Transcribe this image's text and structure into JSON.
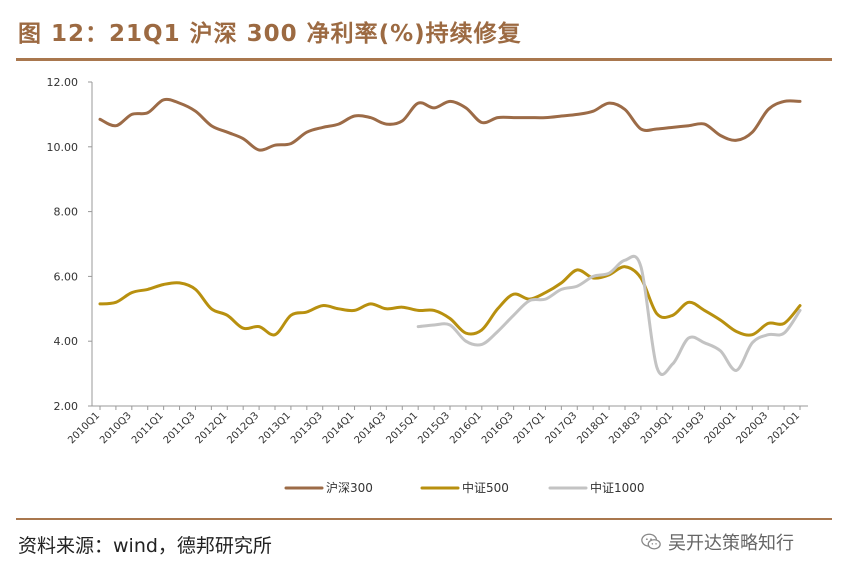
{
  "title": "图 12：21Q1 沪深 300 净利率(%)持续修复",
  "source": "资料来源：wind，德邦研究所",
  "watermark": "吴开达策略知行",
  "watermark_icon": "wechat-icon",
  "colors": {
    "accent": "#a9774e",
    "hs300": "#9c6b47",
    "zz500": "#b8900f",
    "zz1000": "#c3c3c3"
  },
  "chart_data": {
    "type": "line",
    "title": "21Q1 沪深 300 净利率(%)持续修复",
    "ylim": [
      2,
      12
    ],
    "yticks": [
      "12.00",
      "10.00",
      "8.00",
      "6.00",
      "4.00",
      "2.00"
    ],
    "xtick_labels": [
      "2010Q1",
      "2010Q3",
      "2011Q1",
      "2011Q3",
      "2012Q1",
      "2012Q3",
      "2013Q1",
      "2013Q3",
      "2014Q1",
      "2014Q3",
      "2015Q1",
      "2015Q3",
      "2016Q1",
      "2016Q3",
      "2017Q1",
      "2017Q3",
      "2018Q1",
      "2018Q3",
      "2019Q1",
      "2019Q3",
      "2020Q1",
      "2020Q3",
      "2021Q1"
    ],
    "quarters": [
      "2010Q1",
      "2010Q2",
      "2010Q3",
      "2010Q4",
      "2011Q1",
      "2011Q2",
      "2011Q3",
      "2011Q4",
      "2012Q1",
      "2012Q2",
      "2012Q3",
      "2012Q4",
      "2013Q1",
      "2013Q2",
      "2013Q3",
      "2013Q4",
      "2014Q1",
      "2014Q2",
      "2014Q3",
      "2014Q4",
      "2015Q1",
      "2015Q2",
      "2015Q3",
      "2015Q4",
      "2016Q1",
      "2016Q2",
      "2016Q3",
      "2016Q4",
      "2017Q1",
      "2017Q2",
      "2017Q3",
      "2017Q4",
      "2018Q1",
      "2018Q2",
      "2018Q3",
      "2018Q4",
      "2019Q1",
      "2019Q2",
      "2019Q3",
      "2019Q4",
      "2020Q1",
      "2020Q2",
      "2020Q3",
      "2020Q4",
      "2021Q1"
    ],
    "series": [
      {
        "name": "沪深300",
        "color": "#9c6b47",
        "values": [
          10.85,
          10.65,
          11.0,
          11.05,
          11.45,
          11.35,
          11.1,
          10.65,
          10.45,
          10.25,
          9.9,
          10.05,
          10.1,
          10.45,
          10.6,
          10.7,
          10.95,
          10.9,
          10.7,
          10.8,
          11.35,
          11.2,
          11.4,
          11.2,
          10.75,
          10.9,
          10.9,
          10.9,
          10.9,
          10.95,
          11.0,
          11.1,
          11.35,
          11.15,
          10.55,
          10.55,
          10.6,
          10.65,
          10.7,
          10.35,
          10.2,
          10.45,
          11.15,
          11.4,
          11.4
        ]
      },
      {
        "name": "中证500",
        "color": "#b8900f",
        "values": [
          5.15,
          5.2,
          5.5,
          5.6,
          5.75,
          5.8,
          5.6,
          5.0,
          4.8,
          4.4,
          4.45,
          4.2,
          4.8,
          4.9,
          5.1,
          5.0,
          4.95,
          5.15,
          5.0,
          5.05,
          4.95,
          4.95,
          4.7,
          4.25,
          4.35,
          5.0,
          5.45,
          5.3,
          5.5,
          5.8,
          6.2,
          5.95,
          6.05,
          6.3,
          5.95,
          4.85,
          4.8,
          5.2,
          4.95,
          4.65,
          4.3,
          4.2,
          4.55,
          4.55,
          5.1
        ]
      },
      {
        "name": "中证1000",
        "color": "#c3c3c3",
        "values": [
          null,
          null,
          null,
          null,
          null,
          null,
          null,
          null,
          null,
          null,
          null,
          null,
          null,
          null,
          null,
          null,
          null,
          null,
          null,
          null,
          4.45,
          4.5,
          4.5,
          4.0,
          3.9,
          4.3,
          4.8,
          5.25,
          5.3,
          5.6,
          5.7,
          6.0,
          6.1,
          6.5,
          6.3,
          3.2,
          3.3,
          4.1,
          3.95,
          3.7,
          3.1,
          3.95,
          4.2,
          4.25,
          4.95
        ]
      }
    ],
    "legend": [
      "沪深300",
      "中证500",
      "中证1000"
    ]
  }
}
